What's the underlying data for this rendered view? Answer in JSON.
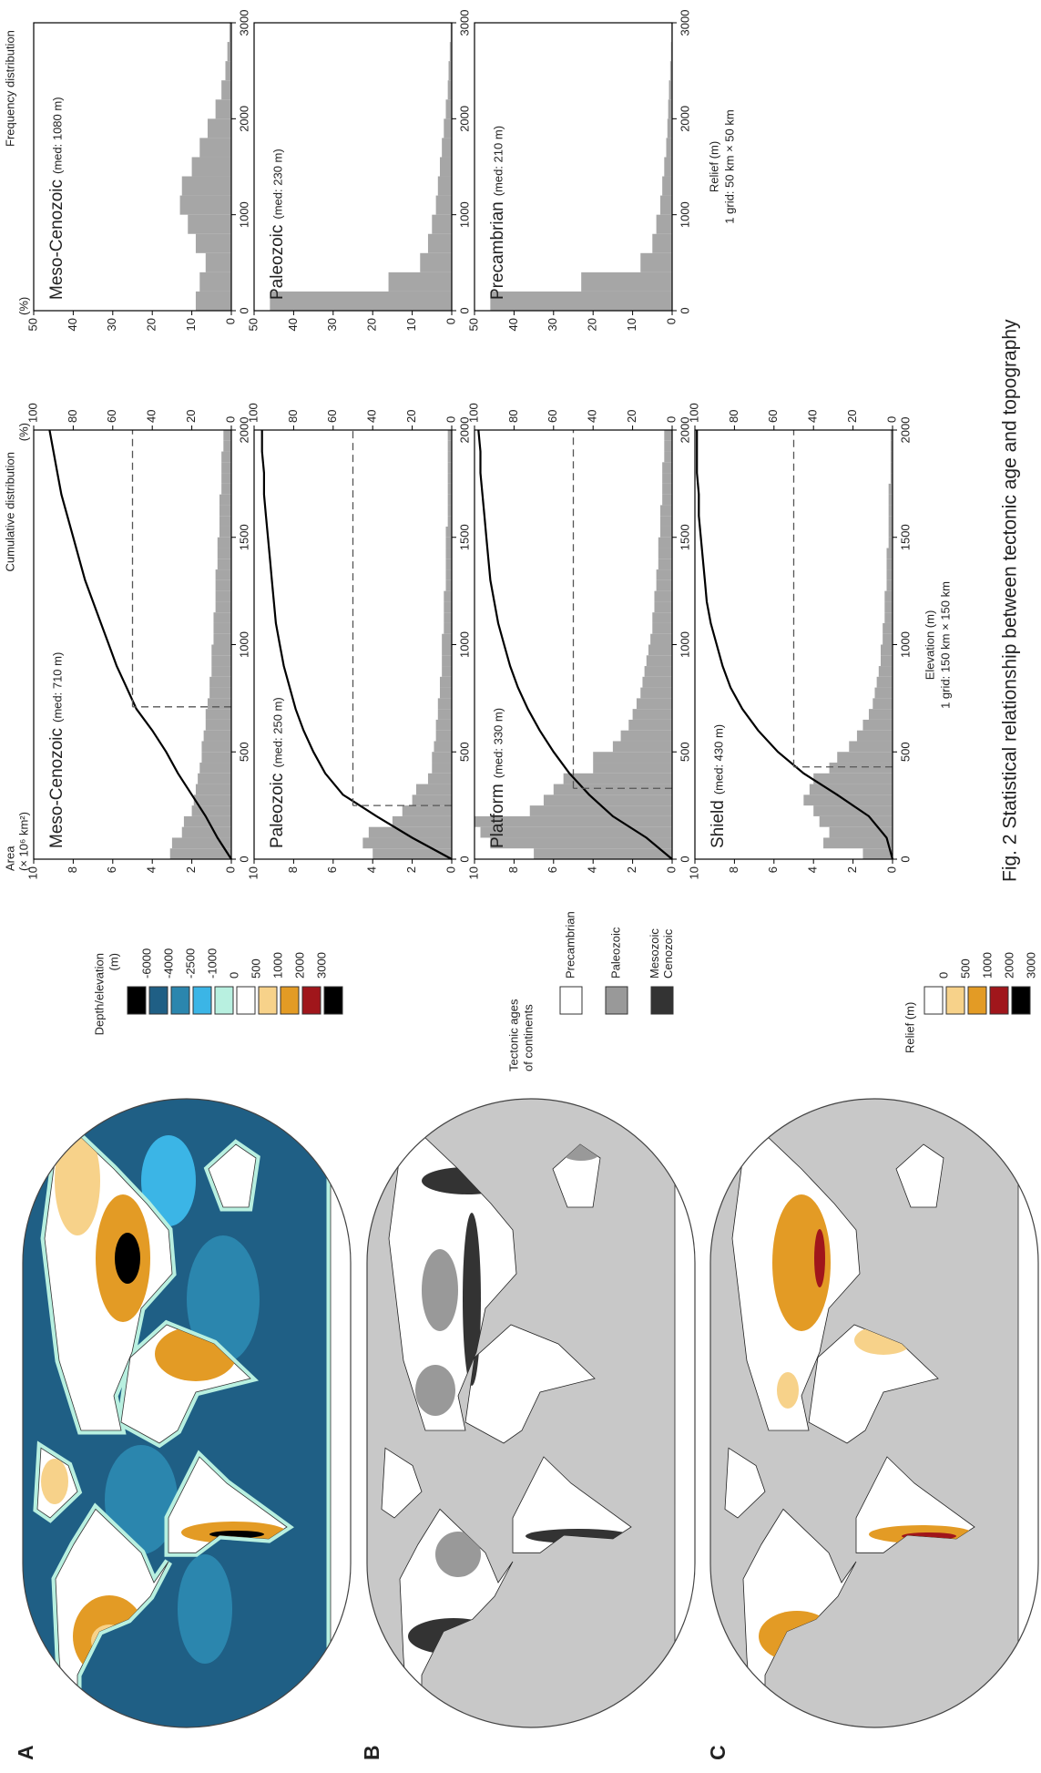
{
  "figure": {
    "caption": "Fig. 2  Statistical relationship between tectonic age and topography",
    "maps": [
      {
        "label": "A",
        "legend": {
          "title": [
            "Depth/elevation",
            "(m)"
          ],
          "colors": [
            "#000000",
            "#1f5f85",
            "#2b86ae",
            "#3bb5e6",
            "#b8f0e0",
            "#ffffff",
            "#f7d28a",
            "#e39b25",
            "#a0161b",
            "#000000"
          ],
          "labels": [
            -6000,
            -4000,
            -2500,
            -1000,
            0,
            500,
            1000,
            2000,
            3000
          ]
        }
      },
      {
        "label": "B",
        "legend": {
          "title": [
            "Tectonic ages",
            "of continents"
          ],
          "items": [
            {
              "name": [
                "Precambrian"
              ],
              "color": "#ffffff"
            },
            {
              "name": [
                "Paleozoic"
              ],
              "color": "#999999"
            },
            {
              "name": [
                "Mesozoic",
                "Cenozoic"
              ],
              "color": "#333333"
            }
          ]
        }
      },
      {
        "label": "C",
        "legend": {
          "title": [
            "Relief (m)"
          ],
          "colors": [
            "#ffffff",
            "#f7d28a",
            "#e39b25",
            "#a0161b",
            "#000000"
          ],
          "labels": [
            0,
            500,
            1000,
            2000,
            3000
          ]
        }
      }
    ],
    "elevation_axes": {
      "ylabel": "Area",
      "ylabel_unit": "(× 10⁶ km²)",
      "y2label": "Cumulative distribution",
      "y2label_unit": "(%)",
      "xlabel": "Elevation (m)",
      "xlabel_note": "1 grid: 150 km × 150 km"
    },
    "relief_axes": {
      "ylabel": "Frequency distribution",
      "ylabel_unit": "(%)",
      "xlabel": "Relief (m)",
      "xlabel_note": "1 grid: 50 km × 50 km"
    }
  },
  "chart_data": [
    {
      "type": "histogram",
      "title": "Meso-Cenozoic",
      "subtitle": "(med: 710 m)",
      "color": "#a6a6a6",
      "bins": [
        0,
        50,
        100,
        150,
        200,
        250,
        300,
        350,
        400,
        450,
        500,
        550,
        600,
        650,
        700,
        750,
        800,
        850,
        900,
        950,
        1000,
        1050,
        1100,
        1150,
        1200,
        1250,
        1300,
        1350,
        1400,
        1450,
        1500,
        1550,
        1600,
        1650,
        1700,
        1750,
        1800,
        1850,
        1900,
        1950,
        2000
      ],
      "values": [
        3.1,
        3.0,
        2.5,
        2.4,
        2.0,
        1.9,
        1.8,
        1.7,
        1.6,
        1.5,
        1.5,
        1.4,
        1.3,
        1.3,
        1.2,
        1.1,
        1.1,
        1.0,
        1.0,
        1.0,
        0.9,
        0.9,
        0.9,
        0.8,
        0.8,
        0.8,
        0.8,
        0.7,
        0.7,
        0.7,
        0.6,
        0.6,
        0.6,
        0.6,
        0.5,
        0.5,
        0.5,
        0.5,
        0.4,
        0.4
      ],
      "xlim": [
        0,
        2000
      ],
      "xticks": [
        0,
        500,
        1000,
        1500,
        2000
      ],
      "ylim": [
        0,
        10
      ],
      "yticks": [
        0,
        2,
        4,
        6,
        8,
        10
      ],
      "y2lim": [
        0,
        100
      ],
      "y2ticks": [
        0,
        20,
        40,
        60,
        80,
        100
      ],
      "cumulative": {
        "axis": "y2",
        "x": [
          0,
          100,
          200,
          300,
          400,
          500,
          600,
          700,
          800,
          900,
          1000,
          1100,
          1200,
          1300,
          1400,
          1500,
          1600,
          1700,
          1800,
          1900,
          2000
        ],
        "values": [
          0,
          7,
          13,
          20,
          27,
          33,
          40,
          48,
          53,
          58,
          62,
          66,
          70,
          74,
          77,
          80,
          83,
          86,
          88,
          90,
          92
        ]
      },
      "median": {
        "x": 710,
        "y2": 50
      }
    },
    {
      "type": "histogram",
      "title": "Paleozoic",
      "subtitle": "(med: 250 m)",
      "color": "#a6a6a6",
      "bins": [
        0,
        50,
        100,
        150,
        200,
        250,
        300,
        350,
        400,
        450,
        500,
        550,
        600,
        650,
        700,
        750,
        800,
        850,
        900,
        950,
        1000,
        1050,
        1100,
        1150,
        1200,
        1250,
        1300,
        1350,
        1400,
        1450,
        1500,
        1550,
        1600,
        1650,
        1700,
        1750,
        1800,
        1850,
        1900,
        1950,
        2000
      ],
      "values": [
        4.0,
        4.5,
        4.2,
        3.0,
        2.5,
        2.0,
        1.8,
        1.2,
        1.0,
        1.0,
        0.9,
        0.8,
        0.8,
        0.7,
        0.7,
        0.6,
        0.6,
        0.5,
        0.5,
        0.5,
        0.5,
        0.4,
        0.4,
        0.4,
        0.4,
        0.3,
        0.3,
        0.3,
        0.3,
        0.3,
        0.3,
        0.2,
        0.2,
        0.2,
        0.2,
        0.2,
        0.2,
        0.2,
        0.2,
        0.2
      ],
      "xlim": [
        0,
        2000
      ],
      "xticks": [
        0,
        500,
        1000,
        1500,
        2000
      ],
      "ylim": [
        0,
        10
      ],
      "yticks": [
        0,
        2,
        4,
        6,
        8,
        10
      ],
      "y2lim": [
        0,
        100
      ],
      "y2ticks": [
        0,
        20,
        40,
        60,
        80,
        100
      ],
      "cumulative": {
        "axis": "y2",
        "x": [
          0,
          100,
          200,
          300,
          400,
          500,
          600,
          700,
          800,
          900,
          1000,
          1100,
          1200,
          1300,
          1400,
          1500,
          1600,
          1700,
          1800,
          1900,
          2000
        ],
        "values": [
          0,
          20,
          38,
          55,
          64,
          70,
          75,
          79,
          82,
          85,
          87,
          89,
          90,
          91,
          92,
          93,
          94,
          95,
          95,
          96,
          96
        ]
      },
      "median": {
        "x": 250,
        "y2": 50
      }
    },
    {
      "type": "histogram",
      "title": "Platform",
      "subtitle": "(med: 330 m)",
      "color": "#a6a6a6",
      "bins": [
        0,
        50,
        100,
        150,
        200,
        250,
        300,
        350,
        400,
        450,
        500,
        550,
        600,
        650,
        700,
        750,
        800,
        850,
        900,
        950,
        1000,
        1050,
        1100,
        1150,
        1200,
        1250,
        1300,
        1350,
        1400,
        1450,
        1500,
        1550,
        1600,
        1650,
        1700,
        1750,
        1800,
        1850,
        1900,
        1950,
        2000
      ],
      "values": [
        7.0,
        9.2,
        9.7,
        10.0,
        7.2,
        6.5,
        6.0,
        5.5,
        4.0,
        4.0,
        3.0,
        2.6,
        2.2,
        2.0,
        1.8,
        1.6,
        1.5,
        1.4,
        1.3,
        1.2,
        1.1,
        1.0,
        1.0,
        0.9,
        0.9,
        0.8,
        0.8,
        0.7,
        0.7,
        0.7,
        0.6,
        0.6,
        0.6,
        0.5,
        0.5,
        0.5,
        0.5,
        0.4,
        0.4,
        0.4
      ],
      "xlim": [
        0,
        2000
      ],
      "xticks": [
        0,
        500,
        1000,
        1500,
        2000
      ],
      "ylim": [
        0,
        10
      ],
      "yticks": [
        0,
        2,
        4,
        6,
        8,
        10
      ],
      "y2lim": [
        0,
        100
      ],
      "y2ticks": [
        0,
        20,
        40,
        60,
        80,
        100
      ],
      "cumulative": {
        "axis": "y2",
        "x": [
          0,
          100,
          200,
          300,
          400,
          500,
          600,
          700,
          800,
          900,
          1000,
          1100,
          1200,
          1300,
          1400,
          1500,
          1600,
          1700,
          1800,
          1900,
          2000
        ],
        "values": [
          0,
          13,
          30,
          42,
          52,
          60,
          67,
          73,
          78,
          82,
          85,
          88,
          90,
          92,
          93,
          94,
          95,
          96,
          97,
          97,
          98
        ]
      },
      "median": {
        "x": 330,
        "y2": 50
      }
    },
    {
      "type": "histogram",
      "title": "Shield",
      "subtitle": "(med: 430 m)",
      "color": "#a6a6a6",
      "bins": [
        0,
        50,
        100,
        150,
        200,
        250,
        300,
        350,
        400,
        450,
        500,
        550,
        600,
        650,
        700,
        750,
        800,
        850,
        900,
        950,
        1000,
        1050,
        1100,
        1150,
        1200,
        1250,
        1300,
        1350,
        1400,
        1450,
        1500,
        1550,
        1600,
        1650,
        1700,
        1750,
        1800,
        1850,
        1900,
        1950,
        2000
      ],
      "values": [
        1.5,
        3.5,
        3.2,
        3.7,
        4.0,
        4.5,
        4.2,
        4.0,
        3.2,
        2.8,
        2.2,
        1.8,
        1.5,
        1.2,
        1.0,
        0.9,
        0.8,
        0.7,
        0.6,
        0.6,
        0.5,
        0.5,
        0.4,
        0.4,
        0.4,
        0.3,
        0.3,
        0.3,
        0.3,
        0.2,
        0.2,
        0.2,
        0.2,
        0.2,
        0.2,
        0.1,
        0.1,
        0.1,
        0.1,
        0.1
      ],
      "xlim": [
        0,
        2000
      ],
      "xticks": [
        0,
        500,
        1000,
        1500,
        2000
      ],
      "ylim": [
        0,
        10
      ],
      "yticks": [
        0,
        2,
        4,
        6,
        8,
        10
      ],
      "y2lim": [
        0,
        100
      ],
      "y2ticks": [
        0,
        20,
        40,
        60,
        80,
        100
      ],
      "cumulative": {
        "axis": "y2",
        "x": [
          0,
          100,
          200,
          300,
          400,
          500,
          600,
          700,
          800,
          900,
          1000,
          1100,
          1200,
          1300,
          1400,
          1500,
          1600,
          1700,
          1800,
          1900,
          2000
        ],
        "values": [
          0,
          3,
          12,
          28,
          45,
          58,
          68,
          76,
          82,
          86,
          89,
          92,
          94,
          95,
          96,
          97,
          98,
          98,
          99,
          99,
          99
        ]
      },
      "median": {
        "x": 430,
        "y2": 50
      }
    },
    {
      "type": "histogram",
      "title": "Meso-Cenozoic",
      "subtitle": "(med: 1080 m)",
      "color": "#a6a6a6",
      "bins": [
        0,
        200,
        400,
        600,
        800,
        1000,
        1200,
        1400,
        1600,
        1800,
        2000,
        2200,
        2400,
        2600,
        2800,
        3000
      ],
      "values": [
        9,
        8,
        6.5,
        9,
        11,
        13,
        12.5,
        10,
        8,
        6,
        4,
        2.5,
        1.5,
        1,
        0.5
      ],
      "xlim": [
        0,
        3000
      ],
      "xticks": [
        0,
        1000,
        2000,
        3000
      ],
      "ylim": [
        0,
        50
      ],
      "yticks": [
        0,
        10,
        20,
        30,
        40,
        50
      ]
    },
    {
      "type": "histogram",
      "title": "Paleozoic",
      "subtitle": "(med: 230 m)",
      "color": "#a6a6a6",
      "bins": [
        0,
        200,
        400,
        600,
        800,
        1000,
        1200,
        1400,
        1600,
        1800,
        2000,
        2200,
        2400,
        2600,
        2800,
        3000
      ],
      "values": [
        46,
        16,
        8,
        6,
        5,
        4,
        3.5,
        3,
        2.5,
        2,
        1.5,
        1,
        0.8,
        0.5,
        0.3
      ],
      "xlim": [
        0,
        3000
      ],
      "xticks": [
        0,
        1000,
        2000,
        3000
      ],
      "ylim": [
        0,
        50
      ],
      "yticks": [
        0,
        10,
        20,
        30,
        40,
        50
      ]
    },
    {
      "type": "histogram",
      "title": "Precambrian",
      "subtitle": "(med: 210 m)",
      "color": "#a6a6a6",
      "bins": [
        0,
        200,
        400,
        600,
        800,
        1000,
        1200,
        1400,
        1600,
        1800,
        2000,
        2200,
        2400,
        2600,
        2800,
        3000
      ],
      "values": [
        46,
        23,
        8,
        5,
        4,
        3,
        2.5,
        2,
        1.5,
        1.2,
        1,
        0.8,
        0.5,
        0.3,
        0.2
      ],
      "xlim": [
        0,
        3000
      ],
      "xticks": [
        0,
        1000,
        2000,
        3000
      ],
      "ylim": [
        0,
        50
      ],
      "yticks": [
        0,
        10,
        20,
        30,
        40,
        50
      ]
    }
  ]
}
